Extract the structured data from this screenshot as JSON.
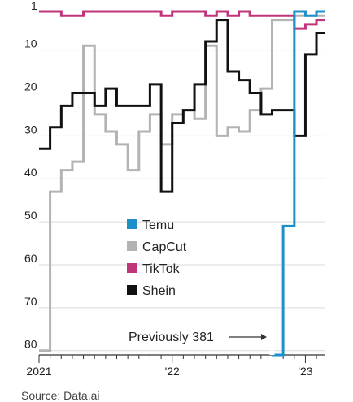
{
  "chart_data": {
    "type": "line",
    "step": true,
    "inverted_y": true,
    "ylim": [
      1,
      81
    ],
    "xlim": [
      2021.0,
      2023.15
    ],
    "grid": true,
    "legend_position": "center-left",
    "yticks": [
      {
        "value": 1,
        "label": "1"
      },
      {
        "value": 10,
        "label": "10"
      },
      {
        "value": 20,
        "label": "20"
      },
      {
        "value": 30,
        "label": "30"
      },
      {
        "value": 40,
        "label": "40"
      },
      {
        "value": 50,
        "label": "50"
      },
      {
        "value": 60,
        "label": "60"
      },
      {
        "value": 70,
        "label": "70"
      },
      {
        "value": 80,
        "label": "80"
      }
    ],
    "xticks": [
      {
        "value": 2021.0,
        "label": "2021"
      },
      {
        "value": 2022.0,
        "label": "'22"
      },
      {
        "value": 2023.0,
        "label": "'23"
      }
    ],
    "annotation": {
      "text": "Previously 381",
      "x": 2022.75,
      "y": 78
    },
    "source": "Source: Data.ai",
    "series": [
      {
        "name": "Shein",
        "color": "#111111",
        "x": [
          2021.0,
          2021.083,
          2021.167,
          2021.25,
          2021.417,
          2021.5,
          2021.583,
          2021.833,
          2021.917,
          2022.0,
          2022.083,
          2022.167,
          2022.25,
          2022.333,
          2022.417,
          2022.5,
          2022.583,
          2022.667,
          2022.75,
          2022.833,
          2022.917,
          2023.0,
          2023.083,
          2023.15
        ],
        "y": [
          33,
          28,
          23,
          20,
          23,
          19,
          23,
          18,
          43,
          27,
          24,
          18,
          8,
          3,
          15,
          17,
          20,
          25,
          24,
          24,
          30,
          11,
          6,
          6
        ]
      },
      {
        "name": "CapCut",
        "color": "#b3b3b3",
        "x": [
          2021.0,
          2021.083,
          2021.167,
          2021.25,
          2021.333,
          2021.417,
          2021.5,
          2021.583,
          2021.667,
          2021.75,
          2021.833,
          2021.917,
          2022.0,
          2022.083,
          2022.167,
          2022.25,
          2022.333,
          2022.417,
          2022.5,
          2022.583,
          2022.667,
          2022.75,
          2022.833,
          2022.917,
          2023.0,
          2023.083,
          2023.15
        ],
        "y": [
          80,
          43,
          38,
          36,
          9,
          25,
          29,
          32,
          38,
          29,
          25,
          32,
          25,
          24,
          26,
          9,
          30,
          28,
          29,
          24,
          19,
          3,
          3,
          2,
          2,
          2,
          2
        ]
      },
      {
        "name": "TikTok",
        "color": "#c0357a",
        "x": [
          2021.0,
          2021.167,
          2021.333,
          2021.833,
          2021.917,
          2022.0,
          2022.25,
          2022.333,
          2022.417,
          2022.5,
          2022.583,
          2022.833,
          2022.917,
          2023.0,
          2023.083,
          2023.15
        ],
        "y": [
          1,
          2,
          1,
          1,
          2,
          1,
          2,
          1,
          2,
          1,
          2,
          2,
          5,
          4,
          3,
          3
        ]
      },
      {
        "name": "Temu",
        "color": "#1f8fc9",
        "x": [
          2022.75,
          2022.833,
          2022.917,
          2023.0,
          2023.083,
          2023.15
        ],
        "y": [
          81,
          51,
          1,
          2,
          1,
          1
        ]
      }
    ],
    "legend_order": [
      "Temu",
      "CapCut",
      "TikTok",
      "Shein"
    ]
  }
}
